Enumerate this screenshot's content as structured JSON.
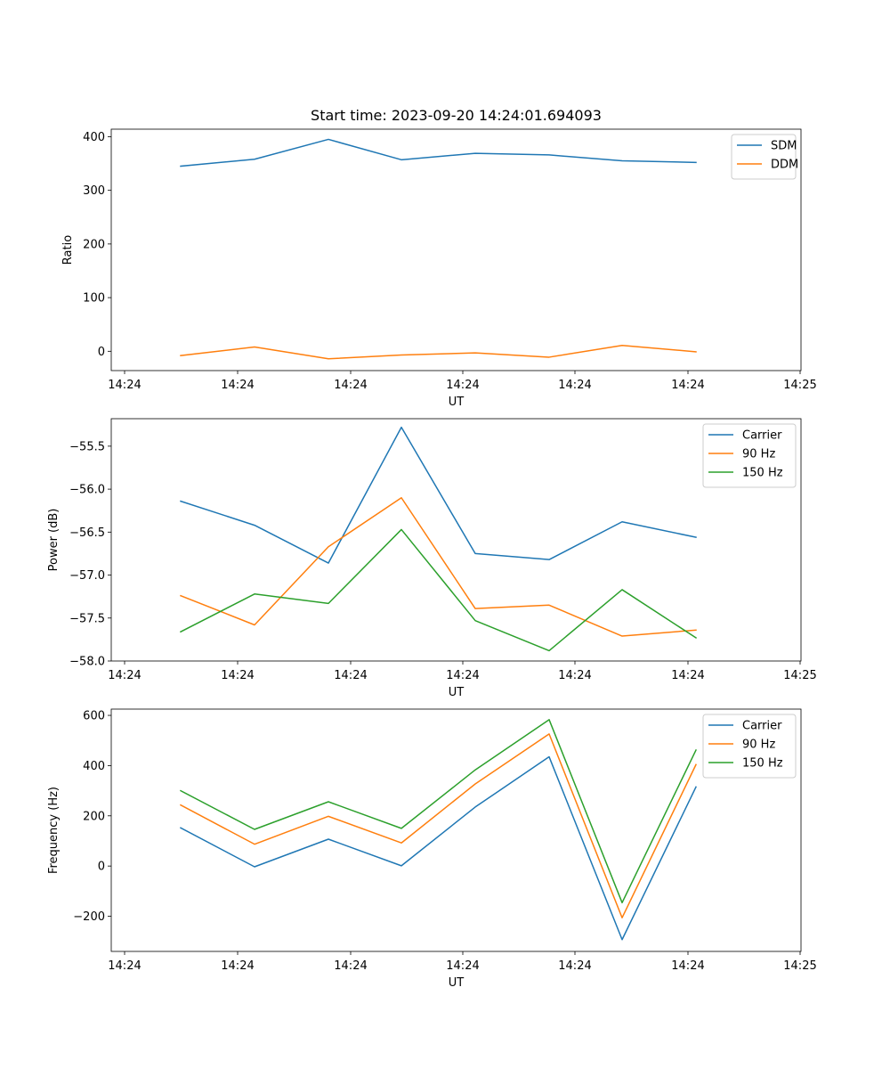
{
  "chart_data": [
    {
      "type": "line",
      "title": "Start time: 2023-09-20 14:24:01.694093",
      "xlabel": "UT",
      "ylabel": "Ratio",
      "ylim": [
        -36,
        414
      ],
      "yticks": [
        0,
        100,
        200,
        300,
        400
      ],
      "ytick_labels": [
        "0",
        "100",
        "200",
        "300",
        "400"
      ],
      "xticks": [
        "14:24",
        "14:24",
        "14:24",
        "14:24",
        "14:24",
        "14:24",
        "14:24",
        "14:25"
      ],
      "legend": "top-right",
      "series": [
        {
          "name": "SDM",
          "color": "#1f77b4",
          "values": [
            345,
            358,
            395,
            357,
            369,
            366,
            355,
            352
          ]
        },
        {
          "name": "DDM",
          "color": "#ff7f0e",
          "values": [
            -8,
            8,
            -14,
            -7,
            -3,
            -11,
            11,
            -1
          ]
        }
      ]
    },
    {
      "type": "line",
      "title": "",
      "xlabel": "UT",
      "ylabel": "Power (dB)",
      "ylim": [
        -58.0,
        -55.18
      ],
      "yticks": [
        -58.0,
        -57.5,
        -57.0,
        -56.5,
        -56.0,
        -55.5
      ],
      "ytick_labels": [
        "−58.0",
        "−57.5",
        "−57.0",
        "−56.5",
        "−56.0",
        "−55.5"
      ],
      "xticks": [
        "14:24",
        "14:24",
        "14:24",
        "14:24",
        "14:24",
        "14:24",
        "14:24",
        "14:25"
      ],
      "legend": "top-right",
      "series": [
        {
          "name": "Carrier",
          "color": "#1f77b4",
          "values": [
            -56.14,
            -56.42,
            -56.86,
            -55.28,
            -56.75,
            -56.82,
            -56.38,
            -56.56
          ]
        },
        {
          "name": "90 Hz",
          "color": "#ff7f0e",
          "values": [
            -57.24,
            -57.58,
            -56.67,
            -56.1,
            -57.39,
            -57.35,
            -57.71,
            -57.64
          ]
        },
        {
          "name": "150 Hz",
          "color": "#2ca02c",
          "values": [
            -57.66,
            -57.22,
            -57.33,
            -56.47,
            -57.53,
            -57.88,
            -57.17,
            -57.73
          ]
        }
      ]
    },
    {
      "type": "line",
      "title": "",
      "xlabel": "UT",
      "ylabel": "Frequency (Hz)",
      "ylim": [
        -340,
        625
      ],
      "yticks": [
        -200,
        0,
        200,
        400,
        600
      ],
      "ytick_labels": [
        "−200",
        "0",
        "200",
        "400",
        "600"
      ],
      "xticks": [
        "14:24",
        "14:24",
        "14:24",
        "14:24",
        "14:24",
        "14:24",
        "14:24",
        "14:25"
      ],
      "legend": "top-right",
      "series": [
        {
          "name": "Carrier",
          "color": "#1f77b4",
          "values": [
            152,
            -3,
            107,
            1,
            235,
            435,
            -293,
            315
          ]
        },
        {
          "name": "90 Hz",
          "color": "#ff7f0e",
          "values": [
            243,
            87,
            198,
            92,
            327,
            526,
            -206,
            404
          ]
        },
        {
          "name": "150 Hz",
          "color": "#2ca02c",
          "values": [
            300,
            146,
            256,
            150,
            383,
            583,
            -146,
            462
          ]
        }
      ]
    }
  ]
}
